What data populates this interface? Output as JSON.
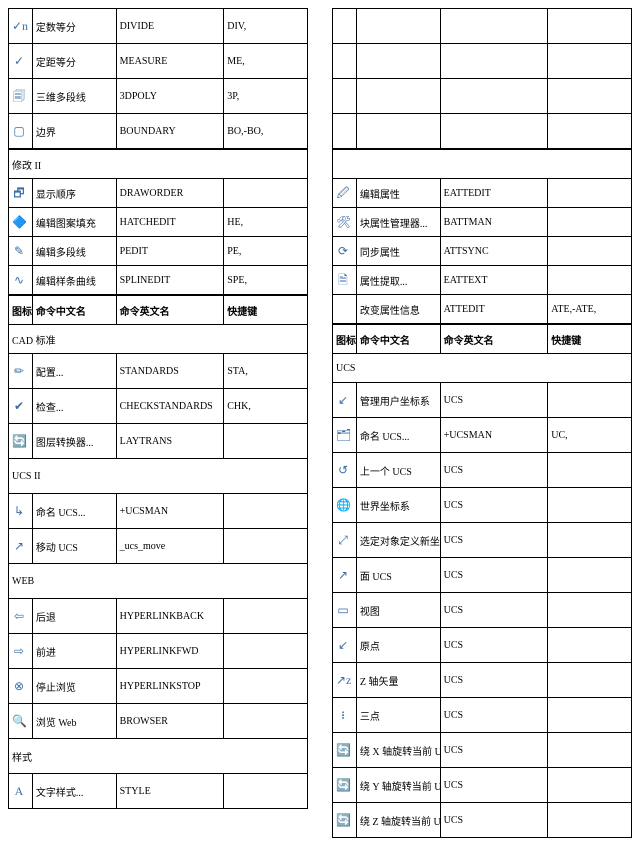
{
  "headers": {
    "icon": "图标",
    "cn": "命令中文名",
    "en": "命令英文名",
    "sk": "快捷键"
  },
  "left": {
    "top": [
      {
        "icon": "✓n",
        "cn": "定数等分",
        "en": "DIVIDE",
        "sk": "DIV,"
      },
      {
        "icon": "✓",
        "cn": "定距等分",
        "en": "MEASURE",
        "sk": "ME,"
      },
      {
        "icon": "🗐",
        "cn": "三维多段线",
        "en": "3DPOLY",
        "sk": "3P,"
      },
      {
        "icon": "▢",
        "cn": "边界",
        "en": "BOUNDARY",
        "sk": "BO,-BO,"
      }
    ],
    "sec1_title": "修改 II",
    "sec1": [
      {
        "icon": "🗗",
        "cn": "显示顺序",
        "en": "DRAWORDER",
        "sk": ""
      },
      {
        "icon": "🔷",
        "cn": "编辑图案填充",
        "en": "HATCHEDIT",
        "sk": "HE,"
      },
      {
        "icon": "✎",
        "cn": "编辑多段线",
        "en": "PEDIT",
        "sk": "PE,"
      },
      {
        "icon": "∿",
        "cn": "编辑样条曲线",
        "en": "SPLINEDIT",
        "sk": "SPE,"
      }
    ],
    "sec_cad_title": "CAD 标准",
    "sec_cad": [
      {
        "icon": "✏",
        "cn": "配置...",
        "en": "STANDARDS",
        "sk": "STA,"
      },
      {
        "icon": "✔",
        "cn": "检查...",
        "en": "CHECKSTANDARDS",
        "sk": "CHK,"
      },
      {
        "icon": "🔄",
        "cn": "图层转换器...",
        "en": "LAYTRANS",
        "sk": ""
      }
    ],
    "sec_ucs2_title": "UCS II",
    "sec_ucs2": [
      {
        "icon": "↳",
        "cn": "命名 UCS...",
        "en": "+UCSMAN",
        "sk": ""
      },
      {
        "icon": "↗",
        "cn": "移动 UCS",
        "en": "_ucs_move",
        "sk": ""
      }
    ],
    "sec_web_title": "WEB",
    "sec_web": [
      {
        "icon": "⇦",
        "cn": "后退",
        "en": "HYPERLINKBACK",
        "sk": ""
      },
      {
        "icon": "⇨",
        "cn": "前进",
        "en": "HYPERLINKFWD",
        "sk": ""
      },
      {
        "icon": "⊗",
        "cn": "停止浏览",
        "en": "HYPERLINKSTOP",
        "sk": ""
      },
      {
        "icon": "🔍",
        "cn": "浏览 Web",
        "en": "BROWSER",
        "sk": ""
      }
    ],
    "sec_style_title": "样式",
    "sec_style": [
      {
        "icon": "A",
        "cn": "文字样式...",
        "en": "STYLE",
        "sk": ""
      }
    ]
  },
  "right": {
    "blank_top_rows": 4,
    "sec1": [
      {
        "icon": "🖉",
        "cn": "编辑属性",
        "en": "EATTEDIT",
        "sk": ""
      },
      {
        "icon": "🛠",
        "cn": "块属性管理器...",
        "en": "BATTMAN",
        "sk": ""
      },
      {
        "icon": "⟳",
        "cn": "同步属性",
        "en": "ATTSYNC",
        "sk": ""
      },
      {
        "icon": "🗎",
        "cn": "属性提取...",
        "en": "EATTEXT",
        "sk": ""
      },
      {
        "icon": "",
        "cn": "改变属性信息",
        "en": "ATTEDIT",
        "sk": "ATE,-ATE,"
      }
    ],
    "sec_ucs_title": "UCS",
    "sec_ucs": [
      {
        "icon": "↙",
        "cn": "管理用户坐标系",
        "en": "UCS",
        "sk": ""
      },
      {
        "icon": "🗂",
        "cn": "命名 UCS...",
        "en": "+UCSMAN",
        "sk": "UC,"
      },
      {
        "icon": "↺",
        "cn": "上一个 UCS",
        "en": "UCS",
        "sk": ""
      },
      {
        "icon": "🌐",
        "cn": "世界坐标系",
        "en": "UCS",
        "sk": ""
      },
      {
        "icon": "⤢",
        "cn": "选定对象定义新坐标系",
        "en": "UCS",
        "sk": ""
      },
      {
        "icon": "↗",
        "cn": "面 UCS",
        "en": "UCS",
        "sk": ""
      },
      {
        "icon": "▭",
        "cn": "视图",
        "en": "UCS",
        "sk": ""
      },
      {
        "icon": "↙",
        "cn": "原点",
        "en": "UCS",
        "sk": ""
      },
      {
        "icon": "↗z",
        "cn": "Z 轴矢量",
        "en": "UCS",
        "sk": ""
      },
      {
        "icon": "᎒",
        "cn": "三点",
        "en": "UCS",
        "sk": ""
      },
      {
        "icon": "🔄",
        "cn": "绕 X 轴旋转当前 UCS",
        "en": "UCS",
        "sk": ""
      },
      {
        "icon": "🔄",
        "cn": "绕 Y 轴旋转当前 UCS",
        "en": "UCS",
        "sk": ""
      },
      {
        "icon": "🔄",
        "cn": "绕 Z 轴旋转当前 UCS",
        "en": "UCS",
        "sk": ""
      }
    ]
  },
  "icon_colors": {
    "default": "#3a6ea5",
    "red": "#c00",
    "green": "#080",
    "purple": "#808",
    "gray": "#666"
  }
}
